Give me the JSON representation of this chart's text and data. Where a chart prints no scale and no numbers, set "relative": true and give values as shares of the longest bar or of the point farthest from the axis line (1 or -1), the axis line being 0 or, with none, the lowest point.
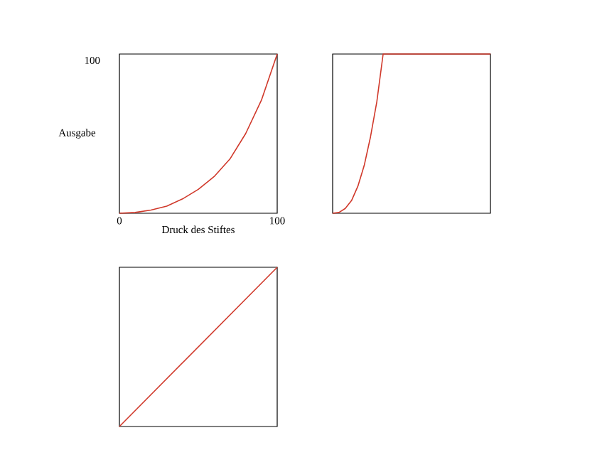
{
  "chart_data": [
    {
      "type": "line",
      "relative": true,
      "xlabel": "Druck des Stiftes",
      "ylabel": "Ausgabe",
      "annotations": [
        "100"
      ],
      "x": [
        0,
        10,
        20,
        30,
        40,
        50,
        60,
        70,
        80,
        90,
        100
      ],
      "series": [
        {
          "color": "#d0382a",
          "values": [
            0,
            0.005,
            0.02,
            0.045,
            0.09,
            0.15,
            0.23,
            0.34,
            0.5,
            0.71,
            1
          ]
        }
      ],
      "xlim": [
        0,
        100
      ],
      "xticks": [
        0,
        100
      ],
      "tick_labels": "x"
    },
    {
      "type": "line",
      "relative": true,
      "categories": [
        null,
        null,
        null,
        null,
        null,
        null,
        null,
        null,
        null,
        null,
        null,
        null,
        null,
        null,
        null,
        null,
        null,
        null,
        null,
        null,
        null,
        null,
        null,
        null,
        null,
        null
      ],
      "series": [
        {
          "color": "#d0382a",
          "values": [
            0,
            0.005,
            0.03,
            0.08,
            0.17,
            0.3,
            0.48,
            0.7,
            1,
            1,
            1,
            1,
            1,
            1,
            1,
            1,
            1,
            1,
            1,
            1,
            1,
            1,
            1,
            1,
            1,
            1
          ]
        }
      ],
      "tick_labels": false
    },
    {
      "type": "line",
      "relative": true,
      "categories": [
        null,
        null
      ],
      "series": [
        {
          "color": "#d0382a",
          "values": [
            0,
            1
          ]
        }
      ],
      "tick_labels": false
    }
  ]
}
